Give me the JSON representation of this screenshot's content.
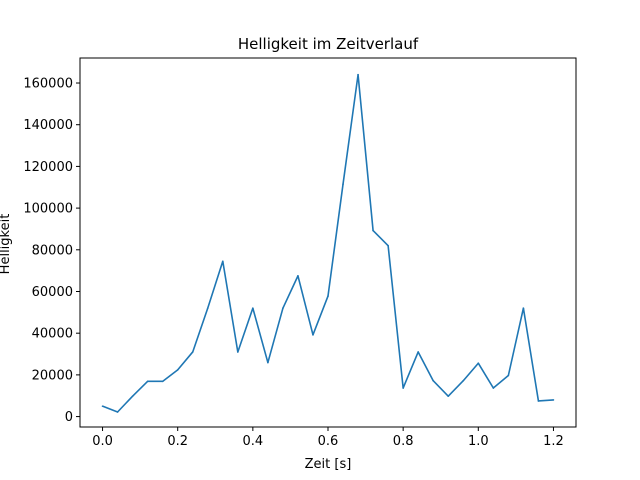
{
  "chart_data": {
    "type": "line",
    "title": "Helligkeit im Zeitverlauf",
    "xlabel": "Zeit [s]",
    "ylabel": "Helligkeit",
    "xlim": [
      -0.06,
      1.26
    ],
    "ylim": [
      -5000,
      172000
    ],
    "xticks": [
      0.0,
      0.2,
      0.4,
      0.6,
      0.8,
      1.0,
      1.2
    ],
    "xtick_labels": [
      "0.0",
      "0.2",
      "0.4",
      "0.6",
      "0.8",
      "1.0",
      "1.2"
    ],
    "yticks": [
      0,
      20000,
      40000,
      60000,
      80000,
      100000,
      120000,
      140000,
      160000
    ],
    "ytick_labels": [
      "0",
      "20000",
      "40000",
      "60000",
      "80000",
      "100000",
      "120000",
      "140000",
      "160000"
    ],
    "grid": false,
    "line_color": "#1f77b4",
    "series": [
      {
        "x": [
          0.0,
          0.04,
          0.08,
          0.12,
          0.16,
          0.2,
          0.24,
          0.28,
          0.32,
          0.36,
          0.4,
          0.44,
          0.48,
          0.52,
          0.56,
          0.6,
          0.64,
          0.68,
          0.72,
          0.76,
          0.8,
          0.84,
          0.88,
          0.92,
          0.96,
          1.0,
          1.04,
          1.08,
          1.12,
          1.16,
          1.2
        ],
        "values": [
          5000,
          2200,
          9800,
          16900,
          16900,
          22400,
          31000,
          52000,
          74500,
          31000,
          52000,
          25900,
          52000,
          67500,
          39200,
          57800,
          111500,
          164000,
          89200,
          82000,
          13700,
          31000,
          17200,
          9800,
          17200,
          25600,
          13700,
          19700,
          52000,
          7500,
          8000
        ]
      }
    ]
  }
}
